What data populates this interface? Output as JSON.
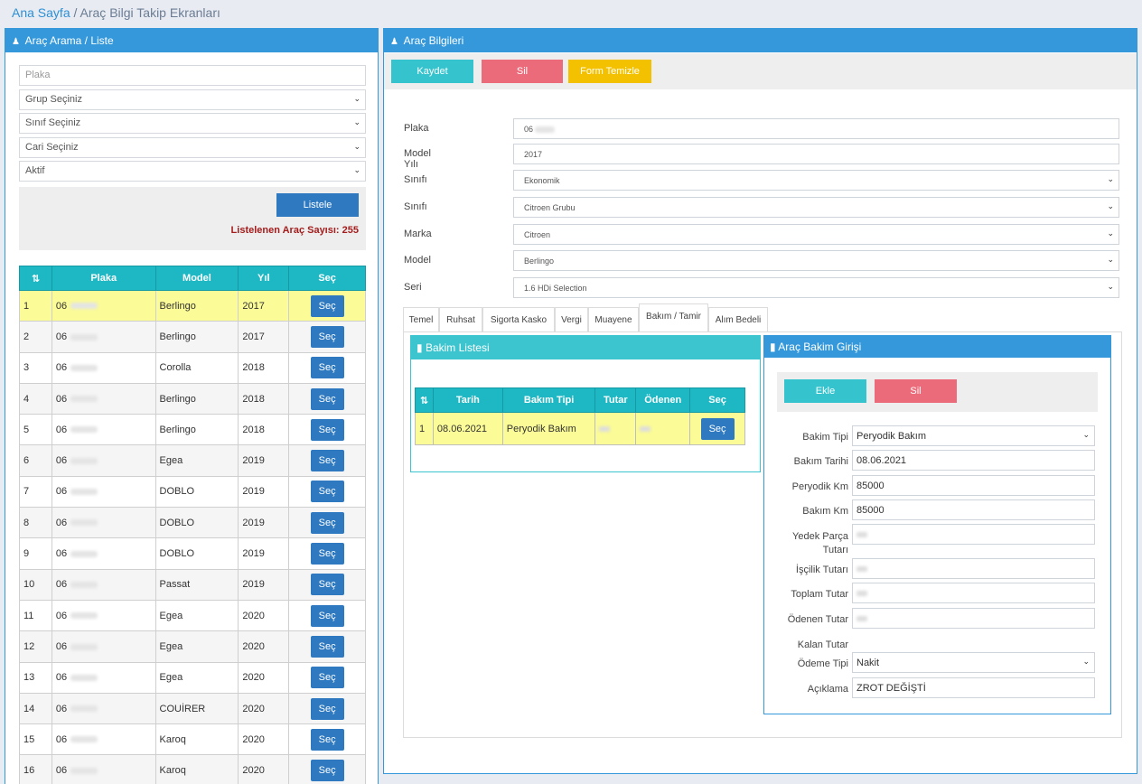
{
  "breadcrumb": {
    "home": "Ana Sayfa",
    "separator": "/",
    "current": "Araç Bilgi Takip Ekranları"
  },
  "left_panel": {
    "title": "Araç Arama / Liste",
    "filters": {
      "plaka_placeholder": "Plaka",
      "grup": "Grup Seçiniz",
      "sinif": "Sınıf Seçiniz",
      "cari": "Cari Seçiniz",
      "durum": "Aktif"
    },
    "listele_label": "Listele",
    "count_text": "Listelenen Araç Sayısı: 255",
    "table": {
      "headers": [
        "⇅",
        "Plaka",
        "Model",
        "Yıl",
        "Seç"
      ],
      "rows": [
        {
          "no": "1",
          "plaka": "06",
          "model": "Berlingo",
          "yil": "2017",
          "sec": "Seç"
        },
        {
          "no": "2",
          "plaka": "06",
          "model": "Berlingo",
          "yil": "2017",
          "sec": "Seç"
        },
        {
          "no": "3",
          "plaka": "06",
          "model": "Corolla",
          "yil": "2018",
          "sec": "Seç"
        },
        {
          "no": "4",
          "plaka": "06",
          "model": "Berlingo",
          "yil": "2018",
          "sec": "Seç"
        },
        {
          "no": "5",
          "plaka": "06",
          "model": "Berlingo",
          "yil": "2018",
          "sec": "Seç"
        },
        {
          "no": "6",
          "plaka": "06",
          "model": "Egea",
          "yil": "2019",
          "sec": "Seç"
        },
        {
          "no": "7",
          "plaka": "06",
          "model": "DOBLO",
          "yil": "2019",
          "sec": "Seç"
        },
        {
          "no": "8",
          "plaka": "06",
          "model": "DOBLO",
          "yil": "2019",
          "sec": "Seç"
        },
        {
          "no": "9",
          "plaka": "06",
          "model": "DOBLO",
          "yil": "2019",
          "sec": "Seç"
        },
        {
          "no": "10",
          "plaka": "06",
          "model": "Passat",
          "yil": "2019",
          "sec": "Seç"
        },
        {
          "no": "11",
          "plaka": "06",
          "model": "Egea",
          "yil": "2020",
          "sec": "Seç"
        },
        {
          "no": "12",
          "plaka": "06",
          "model": "Egea",
          "yil": "2020",
          "sec": "Seç"
        },
        {
          "no": "13",
          "plaka": "06",
          "model": "Egea",
          "yil": "2020",
          "sec": "Seç"
        },
        {
          "no": "14",
          "plaka": "06",
          "model": "COUİRER",
          "yil": "2020",
          "sec": "Seç"
        },
        {
          "no": "15",
          "plaka": "06",
          "model": "Karoq",
          "yil": "2020",
          "sec": "Seç"
        },
        {
          "no": "16",
          "plaka": "06",
          "model": "Karoq",
          "yil": "2020",
          "sec": "Seç"
        }
      ]
    }
  },
  "right_panel": {
    "title": "Araç Bilgileri",
    "buttons": {
      "kaydet": "Kaydet",
      "sil": "Sil",
      "temizle": "Form Temizle"
    },
    "fields": [
      {
        "label": "Plaka",
        "value": "06"
      },
      {
        "label": "Model Yılı",
        "value": "2017"
      },
      {
        "label": "Sınıfı",
        "value": "Ekonomik"
      },
      {
        "label": "Sınıfı",
        "value": "Citroen Grubu"
      },
      {
        "label": "Marka",
        "value": "Citroen"
      },
      {
        "label": "Model",
        "value": "Berlingo"
      },
      {
        "label": "Seri",
        "value": "1.6 HDi Selection"
      }
    ],
    "tabs": [
      "Temel",
      "Ruhsat",
      "Sigorta Kasko",
      "Vergi",
      "Muayene",
      "Bakım / Tamir",
      "Alım Bedeli"
    ],
    "bakim_list": {
      "title": "Bakim Listesi",
      "headers": [
        "⇅",
        "Tarih",
        "Bakım Tipi",
        "Tutar",
        "Ödenen",
        "Seç"
      ],
      "row": {
        "no": "1",
        "tarih": "08.06.2021",
        "tip": "Peryodik Bakım",
        "sec": "Seç"
      }
    },
    "bakim_giris": {
      "title": "Araç Bakim Girişi",
      "ekle": "Ekle",
      "sil": "Sil",
      "labels": {
        "bakim_tipi": "Bakim Tipi",
        "bakim_tarihi": "Bakım Tarihi",
        "periyodik_km": "Peryodik Km",
        "bakim_km": "Bakım Km",
        "yedek_parca_1": "Yedek Parça",
        "yedek_parca_2": "Tutarı",
        "iscilik": "İşçilik Tutarı",
        "toplam": "Toplam Tutar",
        "odenen": "Ödenen Tutar",
        "kalan": "Kalan Tutar",
        "odeme_tipi": "Ödeme Tipi",
        "aciklama": "Açıklama"
      },
      "values": {
        "bakim_tipi": "Peryodik Bakım",
        "bakim_tarihi": "08.06.2021",
        "periyodik_km": "85000",
        "bakim_km": "85000",
        "odeme_tipi": "Nakit",
        "aciklama": "ZROT DEĞİŞTİ"
      }
    }
  },
  "colors": {
    "primary": "#3498db",
    "teal": "#1eb8c5",
    "danger": "#ec6b7a",
    "warning": "#f3c100",
    "highlight": "#fbfb97"
  }
}
